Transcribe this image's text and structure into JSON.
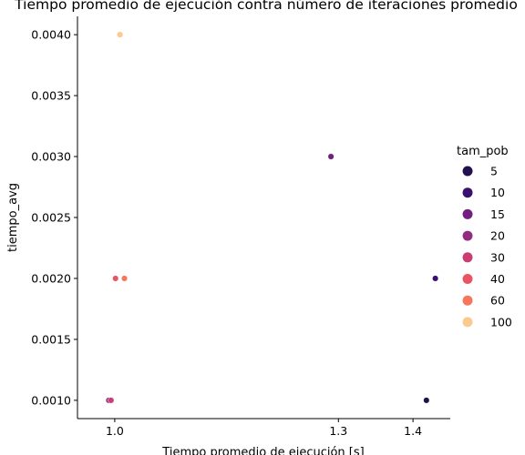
{
  "chart_data": {
    "type": "scatter",
    "title": "Tiempo promedio de ejecución contra número de iteraciones promedio",
    "xlabel": "Tiempo promedio de ejecución [s]",
    "ylabel": "tiempo_avg",
    "xlim": [
      0.95,
      1.45
    ],
    "ylim": [
      0.00085,
      0.00415
    ],
    "x_ticks": [
      1.0,
      1.3,
      1.4
    ],
    "x_tick_labels": [
      "1.0",
      "1.3",
      "1.4"
    ],
    "y_ticks": [
      0.001,
      0.0015,
      0.002,
      0.0025,
      0.003,
      0.0035,
      0.004
    ],
    "y_tick_labels": [
      "0.0010",
      "0.0015",
      "0.0020",
      "0.0025",
      "0.0030",
      "0.0035",
      "0.0040"
    ],
    "grid": false,
    "legend": {
      "title": "tam_pob",
      "placement": "right",
      "entries": [
        {
          "label": "5",
          "color": "#221150"
        },
        {
          "label": "10",
          "color": "#3b0f70"
        },
        {
          "label": "15",
          "color": "#721f81"
        },
        {
          "label": "20",
          "color": "#932b80"
        },
        {
          "label": "30",
          "color": "#c83e73"
        },
        {
          "label": "40",
          "color": "#e95462"
        },
        {
          "label": "60",
          "color": "#f8765c"
        },
        {
          "label": "100",
          "color": "#fcc98f"
        }
      ]
    },
    "points": [
      {
        "x": 1.418,
        "y": 0.001,
        "tam_pob": "5",
        "color": "#221150"
      },
      {
        "x": 1.43,
        "y": 0.002,
        "tam_pob": "10",
        "color": "#3b0f70"
      },
      {
        "x": 1.29,
        "y": 0.003,
        "tam_pob": "15",
        "color": "#721f81"
      },
      {
        "x": 0.992,
        "y": 0.001,
        "tam_pob": "20",
        "color": "#932b80"
      },
      {
        "x": 0.995,
        "y": 0.001,
        "tam_pob": "30",
        "color": "#c83e73"
      },
      {
        "x": 1.001,
        "y": 0.002,
        "tam_pob": "40",
        "color": "#e95462"
      },
      {
        "x": 1.013,
        "y": 0.002,
        "tam_pob": "60",
        "color": "#f8765c"
      },
      {
        "x": 1.007,
        "y": 0.004,
        "tam_pob": "100",
        "color": "#fcc98f"
      }
    ]
  }
}
